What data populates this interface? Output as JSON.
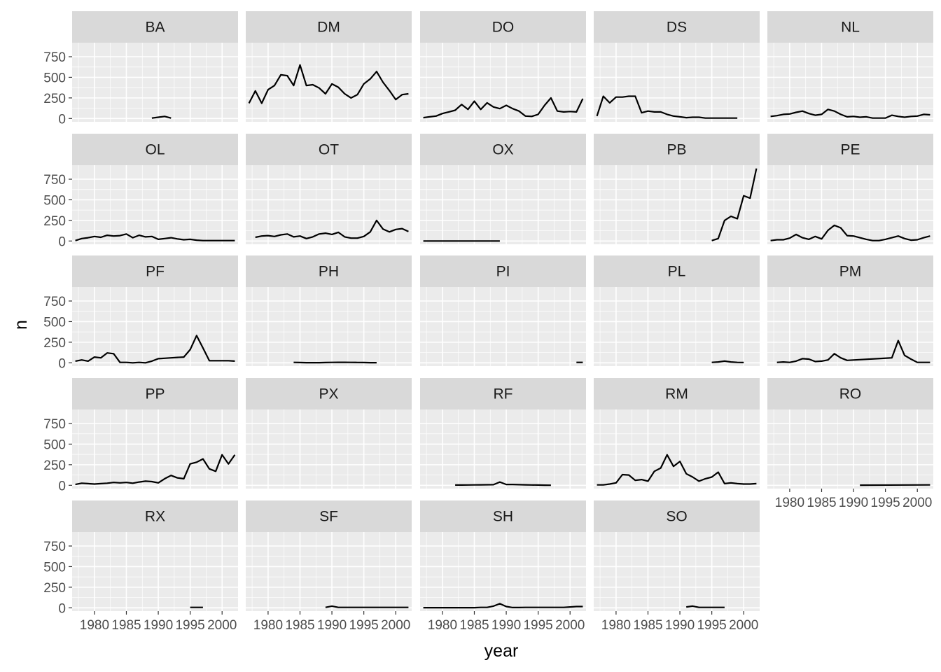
{
  "chart_data": {
    "type": "line",
    "xlabel": "year",
    "ylabel": "n",
    "xlim": [
      1976.5,
      2002.5
    ],
    "ylim": [
      -40,
      920
    ],
    "xticks": [
      1980,
      1985,
      1990,
      1995,
      2000
    ],
    "xtick_labels": [
      "1980",
      "1985",
      "1990",
      "1995",
      "2000"
    ],
    "yticks": [
      0,
      250,
      500,
      750
    ],
    "ytick_labels": [
      "0",
      "250",
      "500",
      "750"
    ],
    "grid": true,
    "legend": "none",
    "colors": {
      "panel": "#ebebeb",
      "strip": "#d9d9d9",
      "line": "#000000",
      "grid_major": "#ffffff",
      "tick": "#333333"
    },
    "facets": [
      {
        "name": "BA",
        "x": [
          1989,
          1990,
          1991,
          1992
        ],
        "values": [
          5,
          15,
          25,
          5
        ]
      },
      {
        "name": "DM",
        "x": [
          1977,
          1978,
          1979,
          1980,
          1981,
          1982,
          1983,
          1984,
          1985,
          1986,
          1987,
          1988,
          1989,
          1990,
          1991,
          1992,
          1993,
          1994,
          1995,
          1996,
          1997,
          1998,
          1999,
          2000,
          2001,
          2002
        ],
        "values": [
          185,
          335,
          185,
          350,
          400,
          530,
          520,
          400,
          650,
          400,
          410,
          370,
          300,
          420,
          380,
          300,
          250,
          290,
          420,
          480,
          570,
          440,
          340,
          230,
          290,
          300
        ]
      },
      {
        "name": "DO",
        "x": [
          1977,
          1978,
          1979,
          1980,
          1981,
          1982,
          1983,
          1984,
          1985,
          1986,
          1987,
          1988,
          1989,
          1990,
          1991,
          1992,
          1993,
          1994,
          1995,
          1996,
          1997,
          1998,
          1999,
          2000,
          2001,
          2002
        ],
        "values": [
          10,
          20,
          30,
          60,
          80,
          100,
          170,
          110,
          210,
          110,
          190,
          140,
          120,
          160,
          120,
          90,
          30,
          25,
          50,
          160,
          250,
          90,
          80,
          85,
          80,
          240
        ]
      },
      {
        "name": "DS",
        "x": [
          1977,
          1978,
          1979,
          1980,
          1981,
          1982,
          1983,
          1984,
          1985,
          1986,
          1987,
          1988,
          1989,
          1990,
          1991,
          1992,
          1993,
          1994,
          1995,
          1996,
          1997,
          1998,
          1999
        ],
        "values": [
          30,
          270,
          190,
          260,
          260,
          270,
          270,
          70,
          90,
          80,
          80,
          50,
          30,
          20,
          10,
          15,
          15,
          5,
          5,
          5,
          5,
          5,
          5
        ]
      },
      {
        "name": "NL",
        "x": [
          1977,
          1978,
          1979,
          1980,
          1981,
          1982,
          1983,
          1984,
          1985,
          1986,
          1987,
          1988,
          1989,
          1990,
          1991,
          1992,
          1993,
          1994,
          1995,
          1996,
          1997,
          1998,
          1999,
          2000,
          2001,
          2002
        ],
        "values": [
          25,
          35,
          50,
          55,
          75,
          90,
          60,
          40,
          50,
          110,
          90,
          50,
          20,
          25,
          15,
          20,
          5,
          5,
          5,
          40,
          25,
          15,
          25,
          30,
          50,
          45
        ]
      },
      {
        "name": "OL",
        "x": [
          1977,
          1978,
          1979,
          1980,
          1981,
          1982,
          1983,
          1984,
          1985,
          1986,
          1987,
          1988,
          1989,
          1990,
          1991,
          1992,
          1993,
          1994,
          1995,
          1996,
          1997,
          1998,
          1999,
          2000,
          2001,
          2002
        ],
        "values": [
          5,
          30,
          40,
          55,
          45,
          70,
          60,
          65,
          85,
          40,
          70,
          50,
          55,
          20,
          30,
          40,
          25,
          15,
          20,
          10,
          5,
          5,
          5,
          5,
          5,
          5
        ]
      },
      {
        "name": "OT",
        "x": [
          1978,
          1979,
          1980,
          1981,
          1982,
          1983,
          1984,
          1985,
          1986,
          1987,
          1988,
          1989,
          1990,
          1991,
          1992,
          1993,
          1994,
          1995,
          1996,
          1997,
          1998,
          1999,
          2000,
          2001,
          2002
        ],
        "values": [
          45,
          60,
          65,
          55,
          75,
          85,
          50,
          60,
          30,
          50,
          85,
          95,
          80,
          105,
          50,
          35,
          35,
          55,
          110,
          250,
          145,
          110,
          140,
          150,
          115
        ]
      },
      {
        "name": "OX",
        "x": [
          1977,
          1989
        ],
        "values": [
          0,
          0
        ]
      },
      {
        "name": "PB",
        "x": [
          1995,
          1996,
          1997,
          1998,
          1999,
          2000,
          2001,
          2002
        ],
        "values": [
          5,
          30,
          250,
          300,
          270,
          550,
          520,
          880
        ]
      },
      {
        "name": "PE",
        "x": [
          1977,
          1978,
          1979,
          1980,
          1981,
          1982,
          1983,
          1984,
          1985,
          1986,
          1987,
          1988,
          1989,
          1990,
          1991,
          1992,
          1993,
          1994,
          1995,
          1996,
          1997,
          1998,
          1999,
          2000,
          2001,
          2002
        ],
        "values": [
          5,
          15,
          15,
          35,
          80,
          40,
          20,
          55,
          25,
          130,
          190,
          160,
          65,
          60,
          40,
          20,
          5,
          5,
          20,
          40,
          60,
          30,
          10,
          15,
          40,
          60
        ]
      },
      {
        "name": "PF",
        "x": [
          1977,
          1978,
          1979,
          1980,
          1981,
          1982,
          1983,
          1984,
          1985,
          1986,
          1987,
          1988,
          1989,
          1990,
          1991,
          1992,
          1993,
          1994,
          1995,
          1996,
          1997,
          1998,
          1999,
          2000,
          2001,
          2002
        ],
        "values": [
          20,
          35,
          20,
          70,
          60,
          120,
          110,
          5,
          5,
          0,
          5,
          0,
          20,
          50,
          55,
          60,
          65,
          70,
          160,
          330,
          180,
          25,
          25,
          25,
          25,
          20
        ]
      },
      {
        "name": "PH",
        "x": [
          1984,
          1985,
          1986,
          1987,
          1988,
          1989,
          1990,
          1991,
          1992,
          1993,
          1994,
          1995,
          1996,
          1997
        ],
        "values": [
          5,
          3,
          2,
          2,
          2,
          3,
          5,
          6,
          6,
          5,
          4,
          3,
          2,
          2
        ]
      },
      {
        "name": "PI",
        "x": [
          2001,
          2002
        ],
        "values": [
          5,
          5
        ]
      },
      {
        "name": "PL",
        "x": [
          1995,
          1996,
          1997,
          1998,
          1999,
          2000
        ],
        "values": [
          5,
          10,
          20,
          10,
          5,
          3
        ]
      },
      {
        "name": "PM",
        "x": [
          1978,
          1979,
          1980,
          1981,
          1982,
          1983,
          1984,
          1985,
          1986,
          1987,
          1988,
          1989,
          1996,
          1997,
          1998,
          1999,
          2000,
          2001,
          2002
        ],
        "values": [
          5,
          10,
          5,
          20,
          50,
          45,
          15,
          20,
          35,
          110,
          60,
          30,
          60,
          270,
          90,
          45,
          5,
          5,
          5
        ]
      },
      {
        "name": "PP",
        "x": [
          1977,
          1978,
          1979,
          1980,
          1981,
          1982,
          1983,
          1984,
          1985,
          1986,
          1987,
          1988,
          1989,
          1990,
          1991,
          1992,
          1993,
          1994,
          1995,
          1996,
          1997,
          1998,
          1999,
          2000,
          2001,
          2002
        ],
        "values": [
          10,
          25,
          20,
          15,
          20,
          25,
          35,
          30,
          35,
          25,
          40,
          50,
          45,
          30,
          80,
          120,
          90,
          80,
          260,
          280,
          320,
          200,
          170,
          370,
          260,
          370
        ]
      },
      {
        "name": "PX",
        "x": [],
        "values": []
      },
      {
        "name": "RF",
        "x": [
          1982,
          1983,
          1984,
          1985,
          1986,
          1987,
          1988,
          1989,
          1990,
          1991,
          1992,
          1993,
          1994,
          1995,
          1996,
          1997
        ],
        "values": [
          3,
          3,
          4,
          5,
          6,
          7,
          8,
          40,
          10,
          10,
          8,
          6,
          4,
          3,
          2,
          1
        ]
      },
      {
        "name": "RM",
        "x": [
          1977,
          1978,
          1979,
          1980,
          1981,
          1982,
          1983,
          1984,
          1985,
          1986,
          1987,
          1988,
          1989,
          1990,
          1991,
          1992,
          1993,
          1994,
          1995,
          1996,
          1997,
          1998,
          1999,
          2000,
          2001,
          2002
        ],
        "values": [
          5,
          5,
          15,
          30,
          130,
          125,
          60,
          70,
          50,
          170,
          210,
          370,
          230,
          290,
          140,
          100,
          50,
          80,
          100,
          160,
          20,
          30,
          20,
          15,
          15,
          20
        ]
      },
      {
        "name": "RO",
        "x": [
          1991,
          2002
        ],
        "values": [
          2,
          5
        ]
      },
      {
        "name": "RX",
        "x": [
          1995,
          1997
        ],
        "values": [
          5,
          5
        ]
      },
      {
        "name": "SF",
        "x": [
          1989,
          1990,
          1991,
          1992,
          1993,
          1994,
          1995,
          1996,
          1997,
          1998,
          1999,
          2000,
          2001,
          2002
        ],
        "values": [
          5,
          20,
          5,
          5,
          5,
          5,
          5,
          5,
          5,
          5,
          5,
          5,
          5,
          5
        ]
      },
      {
        "name": "SH",
        "x": [
          1977,
          1978,
          1979,
          1980,
          1981,
          1982,
          1983,
          1984,
          1985,
          1986,
          1987,
          1988,
          1989,
          1990,
          1991,
          1992,
          1993,
          1994,
          1995,
          1996,
          1997,
          1998,
          1999,
          2000,
          2001,
          2002
        ],
        "values": [
          2,
          2,
          2,
          2,
          2,
          2,
          2,
          2,
          2,
          5,
          5,
          20,
          50,
          15,
          3,
          3,
          5,
          5,
          5,
          5,
          5,
          5,
          5,
          10,
          15,
          15
        ]
      },
      {
        "name": "SO",
        "x": [
          1991,
          1992,
          1993,
          1994,
          1995,
          1996,
          1997
        ],
        "values": [
          10,
          20,
          5,
          5,
          5,
          5,
          5
        ]
      }
    ]
  }
}
